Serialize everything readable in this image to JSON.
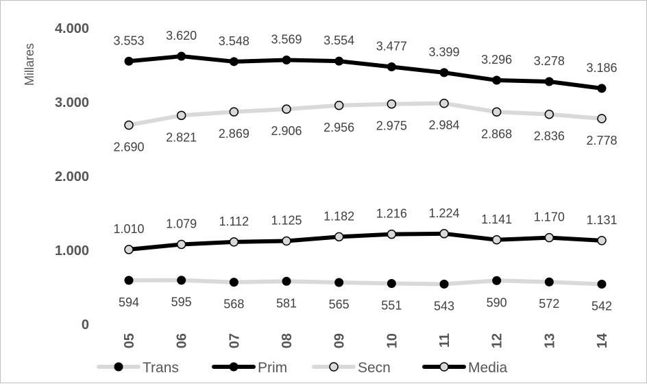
{
  "chart_data": {
    "type": "line",
    "ylabel": "Millares",
    "ylim": [
      0,
      4000
    ],
    "y_ticks": [
      0,
      1000,
      2000,
      3000,
      4000
    ],
    "y_tick_labels": [
      "0",
      "1.000",
      "2.000",
      "3.000",
      "4.000"
    ],
    "categories": [
      "05",
      "06",
      "07",
      "08",
      "09",
      "10",
      "11",
      "12",
      "13",
      "14"
    ],
    "grid": false,
    "legend_position": "bottom",
    "series": [
      {
        "name": "Trans",
        "values": [
          594,
          595,
          568,
          581,
          565,
          551,
          543,
          590,
          572,
          542
        ],
        "labels": [
          "594",
          "595",
          "568",
          "581",
          "565",
          "551",
          "543",
          "590",
          "572",
          "542"
        ],
        "line_color": "#d9d9d9",
        "marker": "filled",
        "marker_color": "#000000",
        "label_position": "below"
      },
      {
        "name": "Prim",
        "values": [
          3553,
          3620,
          3548,
          3569,
          3554,
          3477,
          3399,
          3296,
          3278,
          3186
        ],
        "labels": [
          "3.553",
          "3.620",
          "3.548",
          "3.569",
          "3.554",
          "3.477",
          "3.399",
          "3.296",
          "3.278",
          "3.186"
        ],
        "line_color": "#000000",
        "marker": "filled",
        "marker_color": "#000000",
        "label_position": "above"
      },
      {
        "name": "Secn",
        "values": [
          2690,
          2821,
          2869,
          2906,
          2956,
          2975,
          2984,
          2868,
          2836,
          2778
        ],
        "labels": [
          "2.690",
          "2.821",
          "2.869",
          "2.906",
          "2.956",
          "2.975",
          "2.984",
          "2.868",
          "2.836",
          "2.778"
        ],
        "line_color": "#d9d9d9",
        "marker": "open",
        "marker_color": "#000000",
        "label_position": "below"
      },
      {
        "name": "Media",
        "values": [
          1010,
          1079,
          1112,
          1125,
          1182,
          1216,
          1224,
          1141,
          1170,
          1131
        ],
        "labels": [
          "1.010",
          "1.079",
          "1.112",
          "1.125",
          "1.182",
          "1.216",
          "1.224",
          "1.141",
          "1.170",
          "1.131"
        ],
        "line_color": "#000000",
        "marker": "open",
        "marker_color": "#000000",
        "label_position": "above"
      }
    ]
  }
}
